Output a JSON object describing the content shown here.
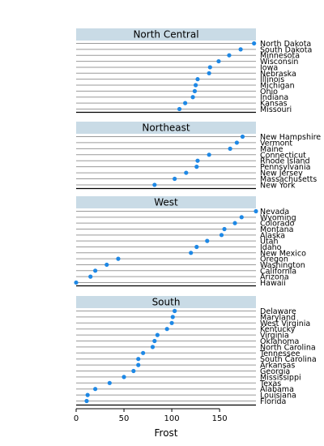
{
  "chart_data": {
    "type": "scatter",
    "xlabel": "Frost",
    "xlim": [
      0,
      188
    ],
    "xticks": [
      0,
      50,
      100,
      150
    ],
    "point_color": "#1e88e5",
    "strip_color": "#c9dbe6",
    "panels": [
      {
        "name": "North Central",
        "rows": [
          {
            "label": "North Dakota",
            "value": 186
          },
          {
            "label": "South Dakota",
            "value": 172
          },
          {
            "label": "Minnesota",
            "value": 160
          },
          {
            "label": "Wisconsin",
            "value": 149
          },
          {
            "label": "Iowa",
            "value": 140
          },
          {
            "label": "Nebraska",
            "value": 139
          },
          {
            "label": "Illinois",
            "value": 127
          },
          {
            "label": "Michigan",
            "value": 125
          },
          {
            "label": "Ohio",
            "value": 124
          },
          {
            "label": "Indiana",
            "value": 122
          },
          {
            "label": "Kansas",
            "value": 114
          },
          {
            "label": "Missouri",
            "value": 108
          }
        ]
      },
      {
        "name": "Northeast",
        "rows": [
          {
            "label": "New Hampshire",
            "value": 174
          },
          {
            "label": "Vermont",
            "value": 168
          },
          {
            "label": "Maine",
            "value": 161
          },
          {
            "label": "Connecticut",
            "value": 139
          },
          {
            "label": "Rhode Island",
            "value": 127
          },
          {
            "label": "Pennsylvania",
            "value": 126
          },
          {
            "label": "New Jersey",
            "value": 115
          },
          {
            "label": "Massachusetts",
            "value": 103
          },
          {
            "label": "New York",
            "value": 82
          }
        ]
      },
      {
        "name": "West",
        "rows": [
          {
            "label": "Nevada",
            "value": 188
          },
          {
            "label": "Wyoming",
            "value": 173
          },
          {
            "label": "Colorado",
            "value": 166
          },
          {
            "label": "Montana",
            "value": 155
          },
          {
            "label": "Alaska",
            "value": 152
          },
          {
            "label": "Utah",
            "value": 137
          },
          {
            "label": "Idaho",
            "value": 126
          },
          {
            "label": "New Mexico",
            "value": 120
          },
          {
            "label": "Oregon",
            "value": 44
          },
          {
            "label": "Washington",
            "value": 32
          },
          {
            "label": "California",
            "value": 20
          },
          {
            "label": "Arizona",
            "value": 15
          },
          {
            "label": "Hawaii",
            "value": 0
          }
        ]
      },
      {
        "name": "South",
        "rows": [
          {
            "label": "Delaware",
            "value": 103
          },
          {
            "label": "Maryland",
            "value": 101
          },
          {
            "label": "West Virginia",
            "value": 100
          },
          {
            "label": "Kentucky",
            "value": 95
          },
          {
            "label": "Virginia",
            "value": 85
          },
          {
            "label": "Oklahoma",
            "value": 82
          },
          {
            "label": "North Carolina",
            "value": 80
          },
          {
            "label": "Tennessee",
            "value": 70
          },
          {
            "label": "South Carolina",
            "value": 65
          },
          {
            "label": "Arkansas",
            "value": 65
          },
          {
            "label": "Georgia",
            "value": 60
          },
          {
            "label": "Mississippi",
            "value": 50
          },
          {
            "label": "Texas",
            "value": 35
          },
          {
            "label": "Alabama",
            "value": 20
          },
          {
            "label": "Louisiana",
            "value": 12
          },
          {
            "label": "Florida",
            "value": 11
          }
        ]
      }
    ]
  }
}
